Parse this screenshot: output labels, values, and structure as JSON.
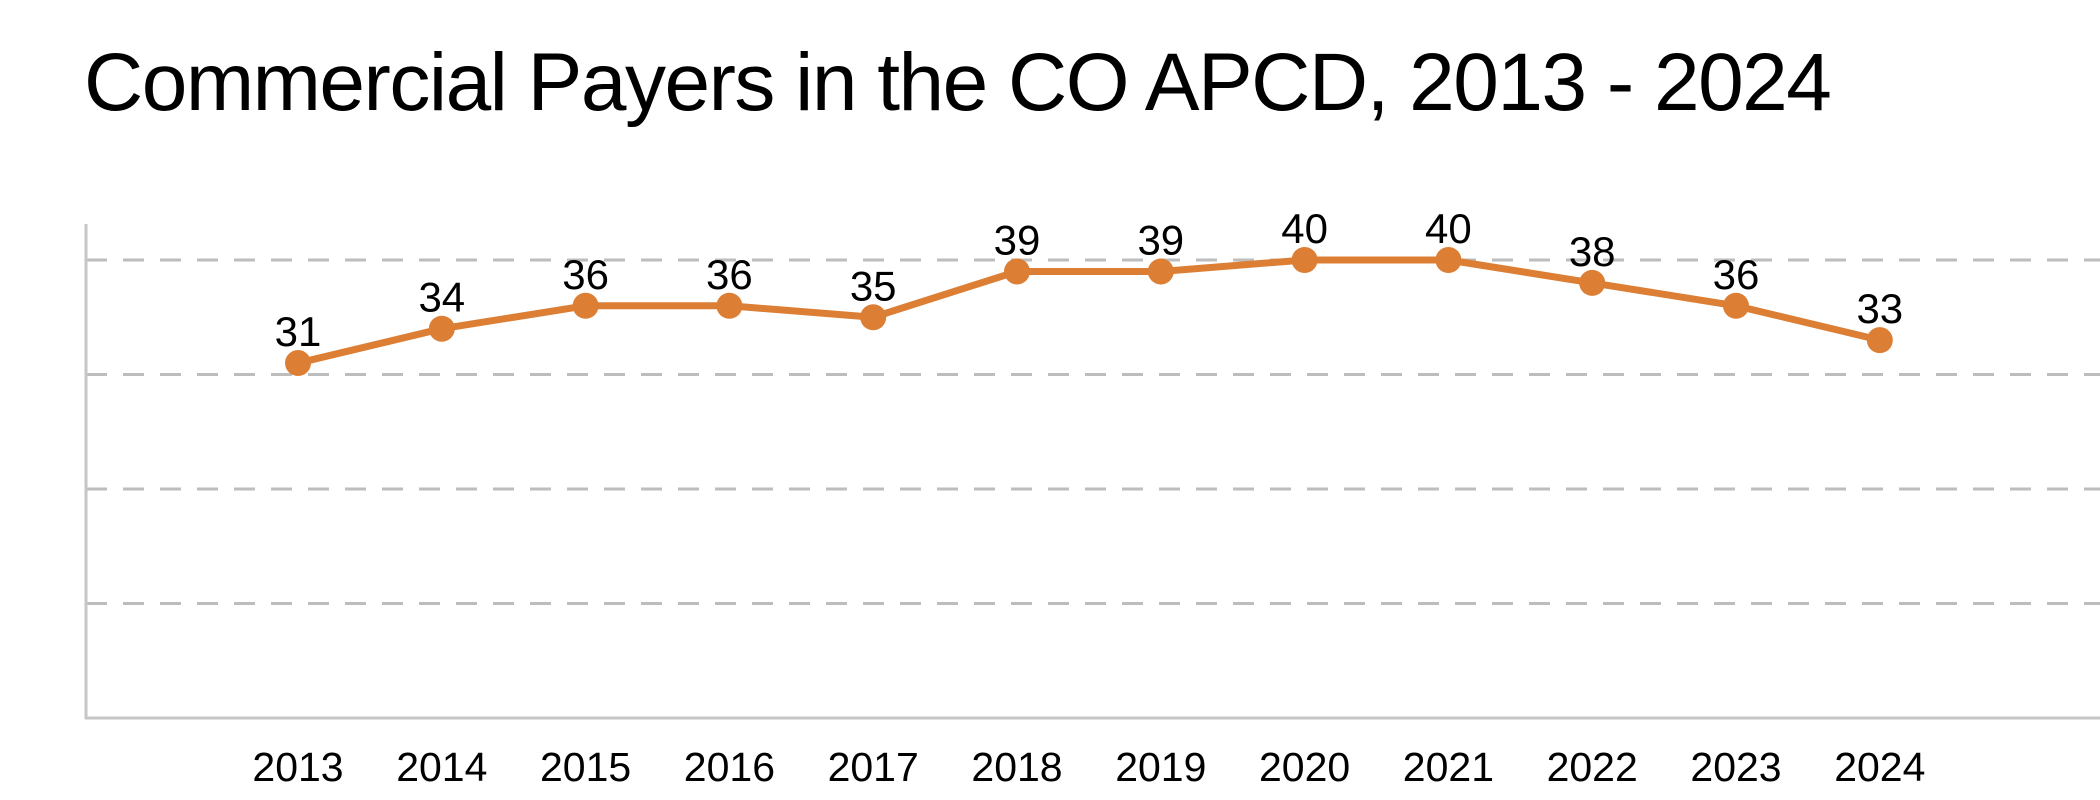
{
  "title": "Commercial Payers in the CO APCD, 2013 - 2024",
  "chart_data": {
    "type": "line",
    "title": "Commercial Payers in the CO APCD, 2013 - 2024",
    "categories": [
      "2013",
      "2014",
      "2015",
      "2016",
      "2017",
      "2018",
      "2019",
      "2020",
      "2021",
      "2022",
      "2023",
      "2024"
    ],
    "series": [
      {
        "name": "Commercial Payers",
        "values": [
          31,
          34,
          36,
          36,
          35,
          39,
          39,
          40,
          40,
          38,
          36,
          33
        ]
      }
    ],
    "xlabel": "",
    "ylabel": "",
    "ylim": [
      0,
      43
    ],
    "yticks": [
      10,
      20,
      30,
      40
    ],
    "ytick_labels_visible": false,
    "grid": "horizontal-dashed",
    "legend": "none",
    "data_labels": true,
    "marker": "circle",
    "colors": {
      "series": "#DC7E33",
      "gridline": "#BDBDBD",
      "axis": "#C6C6C6",
      "title_text": "#000000",
      "label_text": "#000000",
      "tick_text": "#000000",
      "background": "#FFFFFF"
    }
  }
}
